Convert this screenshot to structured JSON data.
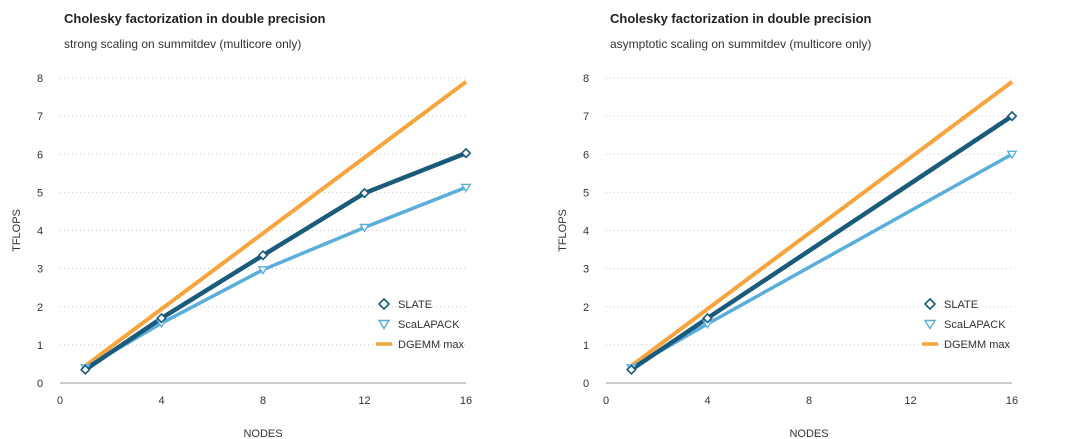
{
  "chart_data": [
    {
      "type": "line",
      "title": "Cholesky factorization in double precision",
      "subtitle": "strong scaling on summitdev (multicore only)",
      "xlabel": "NODES",
      "ylabel": "TFLOPS",
      "xlim": [
        0,
        16
      ],
      "ylim": [
        0,
        8
      ],
      "xticks": [
        0,
        4,
        8,
        12,
        16
      ],
      "yticks": [
        0,
        1,
        2,
        3,
        4,
        5,
        6,
        7,
        8
      ],
      "grid": "horizontal dotted",
      "legend_position": "lower-right",
      "series": [
        {
          "name": "SLATE",
          "marker": "diamond",
          "color": "#1a5a7a",
          "x": [
            1,
            4,
            8,
            12,
            16
          ],
          "y": [
            0.35,
            1.7,
            3.35,
            4.98,
            6.03
          ]
        },
        {
          "name": "ScaLAPACK",
          "marker": "triangle-down",
          "color": "#5aaedc",
          "x": [
            1,
            4,
            8,
            12,
            16
          ],
          "y": [
            0.4,
            1.57,
            2.97,
            4.08,
            5.13
          ]
        },
        {
          "name": "DGEMM max",
          "marker": "none",
          "color": "#f8a43c",
          "x": [
            1,
            16
          ],
          "y": [
            0.45,
            7.9
          ]
        }
      ]
    },
    {
      "type": "line",
      "title": "Cholesky factorization in double precision",
      "subtitle": "asymptotic scaling on summitdev (multicore only)",
      "xlabel": "NODES",
      "ylabel": "TFLOPS",
      "xlim": [
        0,
        16
      ],
      "ylim": [
        0,
        8
      ],
      "xticks": [
        0,
        4,
        8,
        12,
        16
      ],
      "yticks": [
        0,
        1,
        2,
        3,
        4,
        5,
        6,
        7,
        8
      ],
      "grid": "horizontal dotted",
      "legend_position": "lower-right",
      "series": [
        {
          "name": "SLATE",
          "marker": "diamond",
          "color": "#1a5a7a",
          "x": [
            1,
            4,
            16
          ],
          "y": [
            0.35,
            1.7,
            7.0
          ]
        },
        {
          "name": "ScaLAPACK",
          "marker": "triangle-down",
          "color": "#5aaedc",
          "x": [
            1,
            4,
            16
          ],
          "y": [
            0.4,
            1.55,
            6.0
          ]
        },
        {
          "name": "DGEMM max",
          "marker": "none",
          "color": "#f8a43c",
          "x": [
            1,
            16
          ],
          "y": [
            0.45,
            7.9
          ]
        }
      ]
    }
  ]
}
